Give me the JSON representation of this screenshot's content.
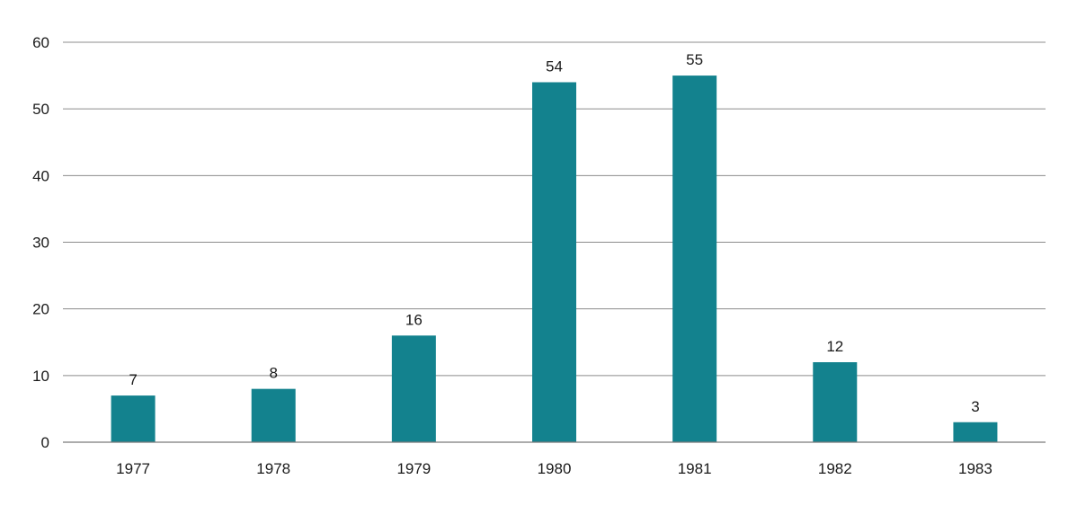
{
  "chart_data": {
    "type": "bar",
    "title": "",
    "xlabel": "",
    "ylabel": "",
    "categories": [
      "1977",
      "1978",
      "1979",
      "1980",
      "1981",
      "1982",
      "1983"
    ],
    "series": [
      {
        "values": [
          7,
          8,
          16,
          54,
          55,
          12,
          3
        ],
        "color": "#13828e"
      }
    ],
    "data_labels": [
      "7",
      "8",
      "16",
      "54",
      "55",
      "12",
      "3"
    ],
    "ylim": [
      0,
      60
    ],
    "yticks": [
      0,
      10,
      20,
      30,
      40,
      50,
      60
    ],
    "ytick_labels": [
      "0",
      "10",
      "20",
      "30",
      "40",
      "50",
      "60"
    ],
    "grid": true,
    "legend": "none"
  }
}
